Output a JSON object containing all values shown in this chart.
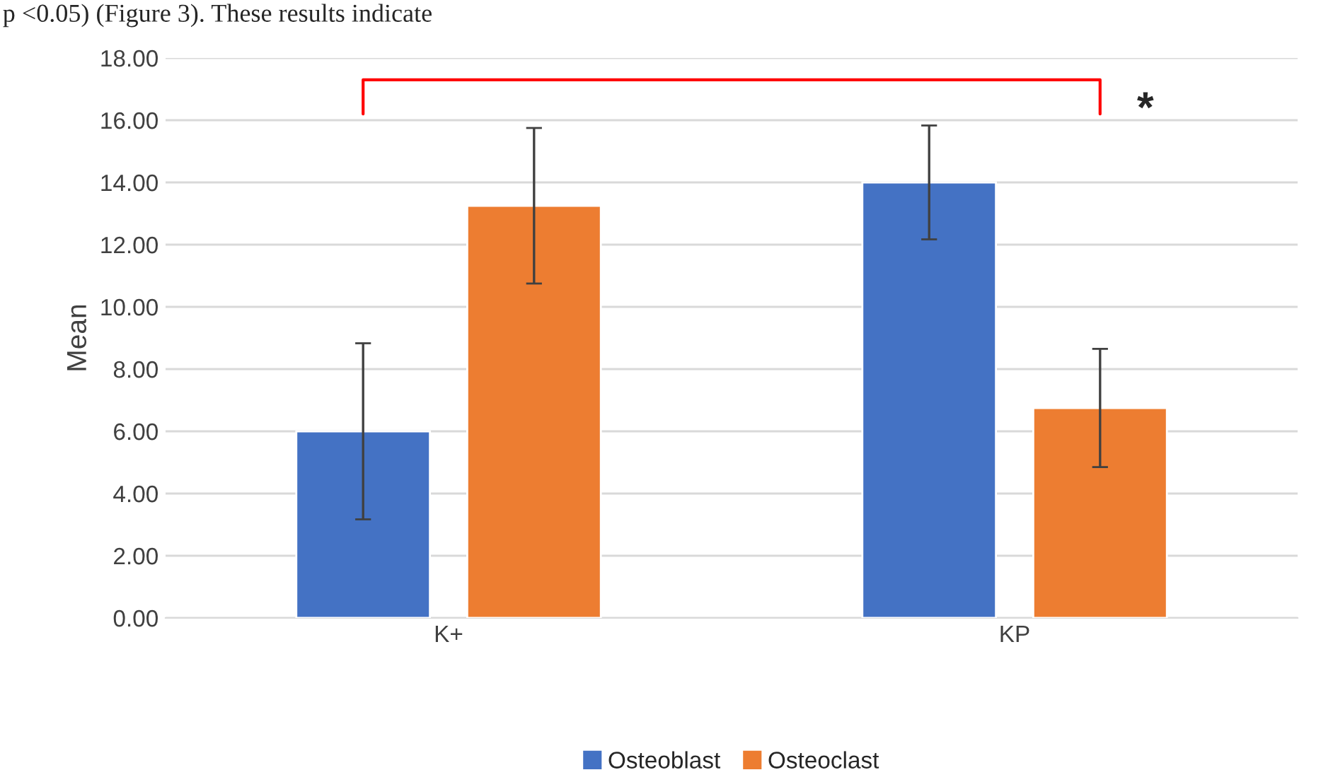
{
  "chart_data": {
    "type": "bar",
    "ylabel": "Mean",
    "categories": [
      "K+",
      "KP"
    ],
    "series": [
      {
        "name": "Osteoblast",
        "color": "#4472c4",
        "values": [
          6.0,
          14.0
        ],
        "errors": [
          2.83,
          1.83
        ]
      },
      {
        "name": "Osteoclast",
        "color": "#ed7d31",
        "values": [
          13.25,
          6.75
        ],
        "errors": [
          2.5,
          1.9
        ]
      }
    ],
    "ylim": [
      0,
      18
    ],
    "yticks": [
      {
        "value": 0,
        "label": "0.00"
      },
      {
        "value": 2,
        "label": "2.00"
      },
      {
        "value": 4,
        "label": "4.00"
      },
      {
        "value": 6,
        "label": "6.00"
      },
      {
        "value": 8,
        "label": "8.00"
      },
      {
        "value": 10,
        "label": "10.00"
      },
      {
        "value": 12,
        "label": "12.00"
      },
      {
        "value": 14,
        "label": "14.00"
      },
      {
        "value": 16,
        "label": "16.00"
      },
      {
        "value": 18,
        "label": "18.00"
      }
    ],
    "grid": "y",
    "legend": "bottom",
    "annotations": [
      "p <0.05) (Figure 3). These results indicate",
      "*"
    ]
  }
}
